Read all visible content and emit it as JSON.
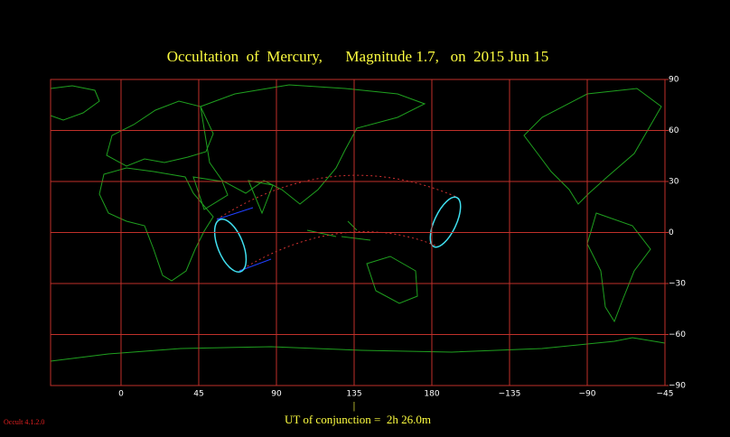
{
  "chart_data": {
    "type": "map",
    "title": "Occultation  of  Mercury,      Magnitude 1.7,   on  2015 Jun 15",
    "xlim": [
      -40.8,
      315
    ],
    "ylim": [
      -90,
      90
    ],
    "xticks": [
      0,
      45,
      90,
      135,
      180,
      {
        "value": 225,
        "label": "−135"
      },
      {
        "value": 270,
        "label": "−90"
      },
      {
        "value": 315,
        "label": "−45"
      }
    ],
    "yticks": [
      90,
      60,
      30,
      0,
      {
        "value": -30,
        "label": "−30"
      },
      {
        "value": -60,
        "label": "−60"
      },
      {
        "value": -90,
        "label": "−90"
      }
    ],
    "grid": true,
    "grid_color": "#c0302a",
    "conjunction_marker": {
      "value": 135,
      "label": "|"
    },
    "footer": "UT of conjunction =  2h 26.0m",
    "version": "Occult 4.1.2.0"
  }
}
